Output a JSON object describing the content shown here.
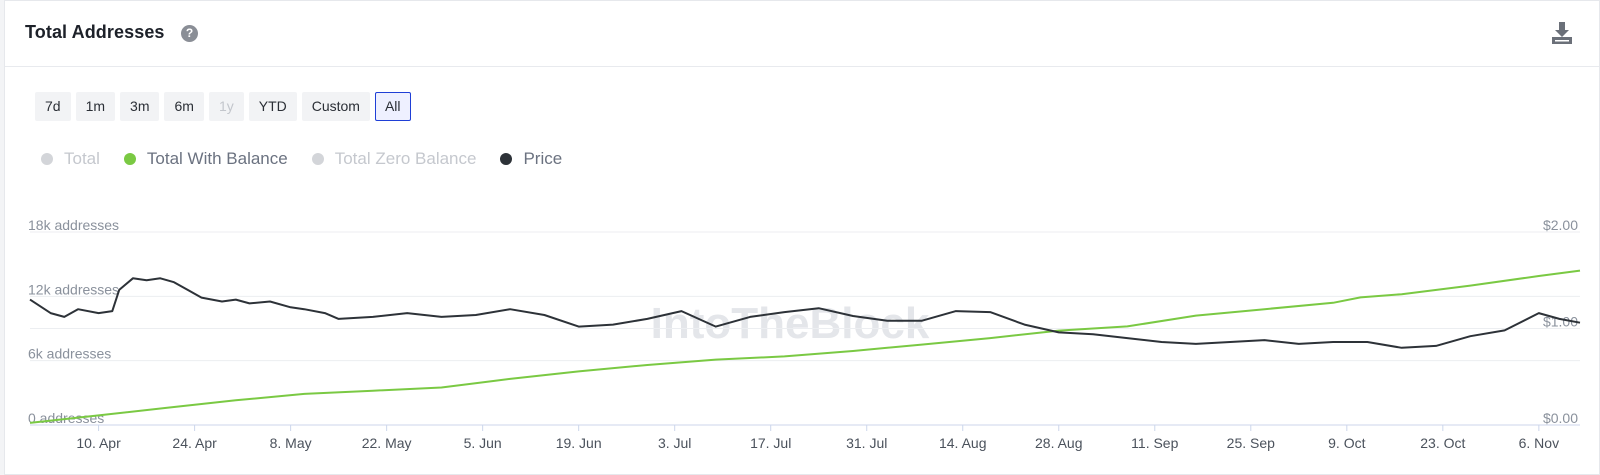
{
  "header": {
    "title": "Total Addresses",
    "help_glyph": "?",
    "download_icon": "download-icon"
  },
  "ranges": [
    {
      "label": "7d",
      "state": "normal"
    },
    {
      "label": "1m",
      "state": "normal"
    },
    {
      "label": "3m",
      "state": "normal"
    },
    {
      "label": "6m",
      "state": "normal"
    },
    {
      "label": "1y",
      "state": "disabled"
    },
    {
      "label": "YTD",
      "state": "normal"
    },
    {
      "label": "Custom",
      "state": "normal"
    },
    {
      "label": "All",
      "state": "active"
    }
  ],
  "watermark": "IntoTheBlock",
  "colors": {
    "total_with_balance": "#7ac943",
    "price": "#2d3238",
    "disabled": "#d3d5d9",
    "active_border": "#1f3fd6"
  },
  "chart_data": {
    "type": "line",
    "legend": [
      {
        "name": "Total",
        "enabled": false,
        "color": "#d3d5d9"
      },
      {
        "name": "Total With Balance",
        "enabled": true,
        "color": "#7ac943"
      },
      {
        "name": "Total Zero Balance",
        "enabled": false,
        "color": "#d3d5d9"
      },
      {
        "name": "Price",
        "enabled": true,
        "color": "#2d3238"
      }
    ],
    "x_ticks": [
      "10. Apr",
      "24. Apr",
      "8. May",
      "22. May",
      "5. Jun",
      "19. Jun",
      "3. Jul",
      "17. Jul",
      "31. Jul",
      "14. Aug",
      "28. Aug",
      "11. Sep",
      "25. Sep",
      "9. Oct",
      "23. Oct",
      "6. Nov"
    ],
    "x_range_days": [
      -10,
      216
    ],
    "left_axis": {
      "ticks": [
        "0 addresses",
        "6k addresses",
        "12k addresses",
        "18k addresses"
      ],
      "values": [
        0,
        6000,
        12000,
        18000
      ],
      "ylim": [
        0,
        18000
      ]
    },
    "right_axis": {
      "ticks": [
        "$0.00",
        "$1.00",
        "$2.00"
      ],
      "values": [
        0,
        1,
        2
      ],
      "ylim": [
        0,
        2
      ]
    },
    "series": [
      {
        "name": "Total With Balance",
        "axis": "left",
        "x_days": [
          -10,
          0,
          10,
          20,
          30,
          40,
          50,
          60,
          70,
          80,
          90,
          100,
          110,
          120,
          130,
          140,
          150,
          160,
          170,
          180,
          184,
          190,
          200,
          210,
          216
        ],
        "values": [
          200,
          900,
          1600,
          2300,
          2900,
          3200,
          3500,
          4300,
          5000,
          5600,
          6100,
          6400,
          6900,
          7500,
          8100,
          8800,
          9200,
          10200,
          10800,
          11400,
          11900,
          12200,
          13000,
          13900,
          14400
        ]
      },
      {
        "name": "Price",
        "axis": "right",
        "x_days": [
          -10,
          -7,
          -5,
          -3,
          0,
          2,
          3,
          5,
          7,
          9,
          11,
          13,
          15,
          18,
          20,
          22,
          25,
          28,
          30,
          33,
          35,
          40,
          45,
          50,
          55,
          60,
          65,
          70,
          75,
          80,
          85,
          90,
          95,
          100,
          105,
          110,
          115,
          120,
          125,
          130,
          135,
          140,
          145,
          150,
          155,
          160,
          165,
          170,
          175,
          180,
          185,
          190,
          195,
          200,
          205,
          210,
          213,
          216
        ],
        "values": [
          1.3,
          1.16,
          1.12,
          1.2,
          1.16,
          1.18,
          1.4,
          1.52,
          1.5,
          1.52,
          1.48,
          1.4,
          1.32,
          1.28,
          1.3,
          1.26,
          1.28,
          1.22,
          1.2,
          1.16,
          1.1,
          1.12,
          1.16,
          1.12,
          1.14,
          1.2,
          1.14,
          1.02,
          1.04,
          1.1,
          1.18,
          1.02,
          1.12,
          1.17,
          1.21,
          1.13,
          1.08,
          1.08,
          1.18,
          1.17,
          1.04,
          0.96,
          0.94,
          0.9,
          0.86,
          0.84,
          0.86,
          0.88,
          0.84,
          0.86,
          0.86,
          0.8,
          0.82,
          0.92,
          0.98,
          1.16,
          1.1,
          1.06
        ]
      }
    ]
  }
}
